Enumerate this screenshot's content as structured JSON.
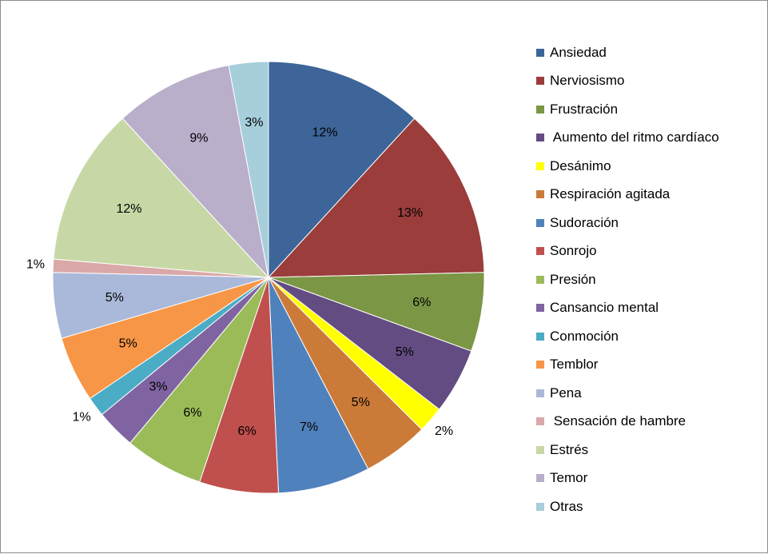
{
  "chart_data": {
    "type": "pie",
    "title": "",
    "legend_position": "right",
    "slices": [
      {
        "label": "Ansiedad",
        "value": 12,
        "display": "12%",
        "color": "#3d6599"
      },
      {
        "label": "Nerviosismo",
        "value": 13,
        "display": "13%",
        "color": "#9a3d3b"
      },
      {
        "label": "Frustración",
        "value": 6,
        "display": "6%",
        "color": "#7b9645"
      },
      {
        "label": " Aumento del ritmo cardíaco",
        "value": 5,
        "display": "5%",
        "color": "#634c81"
      },
      {
        "label": "Desánimo",
        "value": 2,
        "display": "2%",
        "color": "#ffff00"
      },
      {
        "label": "Respiración agitada",
        "value": 5,
        "display": "5%",
        "color": "#cc7a38"
      },
      {
        "label": "Sudoración",
        "value": 7,
        "display": "7%",
        "color": "#4f81bd"
      },
      {
        "label": "Sonrojo",
        "value": 6,
        "display": "6%",
        "color": "#c0504d"
      },
      {
        "label": "Presión",
        "value": 6,
        "display": "6%",
        "color": "#9bbb59"
      },
      {
        "label": "Cansancio mental",
        "value": 3,
        "display": "3%",
        "color": "#8064a2"
      },
      {
        "label": "Conmoción",
        "value": 1.5,
        "display": "1%",
        "color": "#4bacc6"
      },
      {
        "label": "Temblor",
        "value": 5,
        "display": "5%",
        "color": "#f79646"
      },
      {
        "label": "Pena",
        "value": 5,
        "display": "5%",
        "color": "#aab9d9"
      },
      {
        "label": " Sensación de hambre",
        "value": 1,
        "display": "1%",
        "color": "#daa8a8"
      },
      {
        "label": "Estrés",
        "value": 12,
        "display": "12%",
        "color": "#c7d8a6"
      },
      {
        "label": "Temor",
        "value": 9,
        "display": "9%",
        "color": "#b9afcb"
      },
      {
        "label": "Otras",
        "value": 3,
        "display": "3%",
        "color": "#a6cedb"
      }
    ]
  }
}
